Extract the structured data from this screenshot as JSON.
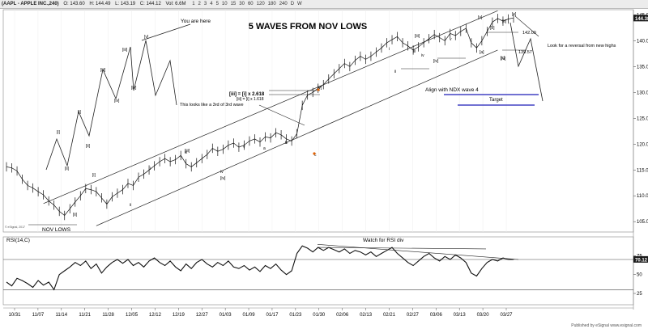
{
  "toolbar": {
    "symbol": "(AAPL - APPLE INC.,240)",
    "open": "O: 143.60",
    "high": "H: 144.49",
    "low": "L: 143.19",
    "close": "C: 144.12",
    "volume": "Vol: 6.6M",
    "timeframes": [
      "1",
      "2",
      "3",
      "4",
      "5",
      "10",
      "15",
      "30",
      "60",
      "120",
      "180",
      "240",
      "D",
      "W"
    ]
  },
  "chart_data": [
    {
      "type": "line",
      "title": "5 WAVES FROM NOV LOWS",
      "series": [],
      "yticks": [
        105.0,
        110.0,
        115.0,
        120.0,
        125.0,
        130.0,
        135.0,
        140.0,
        145.0
      ],
      "ylim": [
        103,
        146
      ],
      "last_price": "144.38",
      "xticks": [
        "10/31",
        "11/07",
        "11/14",
        "11/21",
        "11/28",
        "12/05",
        "12/12",
        "12/19",
        "12/27",
        "01/03",
        "01/09",
        "01/17",
        "01/23",
        "01/30",
        "02/06",
        "02/13",
        "02/21",
        "02/27",
        "03/06",
        "03/13",
        "03/20",
        "03/27"
      ],
      "price_path": [
        [
          0,
          115.6
        ],
        [
          2,
          115.4
        ],
        [
          4,
          114.8
        ],
        [
          6,
          113.2
        ],
        [
          8,
          112.0
        ],
        [
          10,
          111.5
        ],
        [
          12,
          110.8
        ],
        [
          14,
          110.2
        ],
        [
          16,
          109.0
        ],
        [
          18,
          108.2
        ],
        [
          20,
          107.0
        ],
        [
          22,
          106.2
        ],
        [
          24,
          107.5
        ],
        [
          26,
          108.8
        ],
        [
          28,
          110.0
        ],
        [
          30,
          111.4
        ],
        [
          32,
          111.2
        ],
        [
          34,
          110.8
        ],
        [
          36,
          109.6
        ],
        [
          38,
          108.4
        ],
        [
          40,
          109.8
        ],
        [
          42,
          110.5
        ],
        [
          44,
          111.2
        ],
        [
          46,
          112.4
        ],
        [
          48,
          112.0
        ],
        [
          50,
          113.6
        ],
        [
          52,
          114.2
        ],
        [
          54,
          115.0
        ],
        [
          56,
          115.8
        ],
        [
          58,
          116.6
        ],
        [
          60,
          117.2
        ],
        [
          62,
          116.6
        ],
        [
          64,
          117.0
        ],
        [
          66,
          117.8
        ],
        [
          68,
          116.2
        ],
        [
          70,
          115.6
        ],
        [
          72,
          116.4
        ],
        [
          74,
          117.2
        ],
        [
          76,
          118.0
        ],
        [
          78,
          119.2
        ],
        [
          80,
          118.6
        ],
        [
          82,
          119.0
        ],
        [
          84,
          119.8
        ],
        [
          86,
          120.2
        ],
        [
          88,
          119.4
        ],
        [
          90,
          119.8
        ],
        [
          92,
          120.6
        ],
        [
          94,
          121.0
        ],
        [
          96,
          120.4
        ],
        [
          98,
          121.4
        ],
        [
          100,
          121.2
        ],
        [
          102,
          122.2
        ],
        [
          104,
          121.8
        ],
        [
          106,
          121.0
        ],
        [
          108,
          120.6
        ],
        [
          110,
          122.0
        ],
        [
          112,
          127.5
        ],
        [
          114,
          129.5
        ],
        [
          116,
          130.0
        ],
        [
          118,
          130.8
        ],
        [
          120,
          131.5
        ],
        [
          122,
          132.6
        ],
        [
          124,
          133.6
        ],
        [
          126,
          134.6
        ],
        [
          128,
          135.6
        ],
        [
          130,
          135.0
        ],
        [
          132,
          136.2
        ],
        [
          134,
          137.0
        ],
        [
          136,
          136.4
        ],
        [
          138,
          137.0
        ],
        [
          140,
          137.8
        ],
        [
          142,
          138.6
        ],
        [
          144,
          139.6
        ],
        [
          146,
          140.2
        ],
        [
          148,
          140.8
        ],
        [
          150,
          139.6
        ],
        [
          152,
          139.0
        ],
        [
          154,
          138.2
        ],
        [
          156,
          138.8
        ],
        [
          158,
          139.6
        ],
        [
          160,
          140.4
        ],
        [
          162,
          141.2
        ],
        [
          164,
          140.6
        ],
        [
          166,
          140.0
        ],
        [
          168,
          141.4
        ],
        [
          170,
          141.0
        ],
        [
          172,
          141.8
        ],
        [
          174,
          142.4
        ],
        [
          176,
          139.6
        ],
        [
          178,
          138.6
        ],
        [
          180,
          140.0
        ],
        [
          182,
          141.8
        ],
        [
          184,
          143.6
        ],
        [
          186,
          144.3
        ],
        [
          188,
          143.8
        ],
        [
          190,
          144.2
        ],
        [
          192,
          144.4
        ]
      ],
      "labels": {
        "you_are_here": "You are here",
        "third_of_third": "This looks like a 3rd of 3rd wave",
        "fib_iii": "[iii] = [i] x 2.618",
        "fib_iii_sub": "[iii] = [i] x 1.618",
        "align": "Align with NDX wave 4",
        "target": "Target",
        "reversal": "Look for a reversal from new highs",
        "price_142": "142.00",
        "price_139": "139.57",
        "nov_lows": "NOV LOWS",
        "esignal": "© eSignal, 2017"
      },
      "wave_labels": [
        "[i]",
        "[ii]",
        "[iii]",
        "[iv]",
        "[v]",
        "i",
        "ii",
        "iii",
        "iv",
        "v",
        "a",
        "b",
        "c",
        "[a]",
        "[b]",
        "[c]"
      ]
    },
    {
      "type": "line",
      "title": "RSI(14,C)",
      "series": [],
      "yticks": [
        25,
        50,
        75
      ],
      "ylim": [
        10,
        100
      ],
      "last_value": "70.12",
      "annotation": "Watch for RSI div",
      "rsi_path": [
        [
          0,
          40
        ],
        [
          2,
          35
        ],
        [
          4,
          45
        ],
        [
          6,
          42
        ],
        [
          8,
          38
        ],
        [
          10,
          33
        ],
        [
          12,
          42
        ],
        [
          14,
          36
        ],
        [
          16,
          40
        ],
        [
          18,
          30
        ],
        [
          20,
          50
        ],
        [
          22,
          55
        ],
        [
          24,
          60
        ],
        [
          26,
          66
        ],
        [
          28,
          62
        ],
        [
          30,
          68
        ],
        [
          32,
          58
        ],
        [
          34,
          64
        ],
        [
          36,
          52
        ],
        [
          38,
          60
        ],
        [
          40,
          66
        ],
        [
          42,
          70
        ],
        [
          44,
          65
        ],
        [
          46,
          70
        ],
        [
          48,
          62
        ],
        [
          50,
          66
        ],
        [
          52,
          60
        ],
        [
          54,
          68
        ],
        [
          56,
          72
        ],
        [
          58,
          66
        ],
        [
          60,
          62
        ],
        [
          62,
          68
        ],
        [
          64,
          60
        ],
        [
          66,
          55
        ],
        [
          68,
          64
        ],
        [
          70,
          58
        ],
        [
          72,
          66
        ],
        [
          74,
          70
        ],
        [
          76,
          64
        ],
        [
          78,
          60
        ],
        [
          80,
          66
        ],
        [
          82,
          62
        ],
        [
          84,
          68
        ],
        [
          86,
          60
        ],
        [
          88,
          58
        ],
        [
          90,
          62
        ],
        [
          92,
          56
        ],
        [
          94,
          60
        ],
        [
          96,
          54
        ],
        [
          98,
          62
        ],
        [
          100,
          58
        ],
        [
          102,
          64
        ],
        [
          104,
          56
        ],
        [
          106,
          50
        ],
        [
          108,
          55
        ],
        [
          110,
          78
        ],
        [
          112,
          88
        ],
        [
          114,
          85
        ],
        [
          116,
          80
        ],
        [
          118,
          86
        ],
        [
          120,
          82
        ],
        [
          122,
          86
        ],
        [
          124,
          83
        ],
        [
          126,
          80
        ],
        [
          128,
          84
        ],
        [
          130,
          78
        ],
        [
          132,
          82
        ],
        [
          134,
          80
        ],
        [
          136,
          76
        ],
        [
          138,
          80
        ],
        [
          140,
          74
        ],
        [
          142,
          78
        ],
        [
          144,
          82
        ],
        [
          146,
          86
        ],
        [
          148,
          78
        ],
        [
          150,
          72
        ],
        [
          152,
          66
        ],
        [
          154,
          62
        ],
        [
          156,
          68
        ],
        [
          158,
          74
        ],
        [
          160,
          78
        ],
        [
          162,
          72
        ],
        [
          164,
          68
        ],
        [
          166,
          74
        ],
        [
          168,
          70
        ],
        [
          170,
          76
        ],
        [
          172,
          72
        ],
        [
          174,
          66
        ],
        [
          176,
          52
        ],
        [
          178,
          48
        ],
        [
          180,
          58
        ],
        [
          182,
          66
        ],
        [
          184,
          70
        ],
        [
          186,
          68
        ],
        [
          188,
          72
        ],
        [
          190,
          70
        ],
        [
          192,
          70
        ]
      ]
    }
  ],
  "footer": "Published by eSignal  www.esignal.com"
}
